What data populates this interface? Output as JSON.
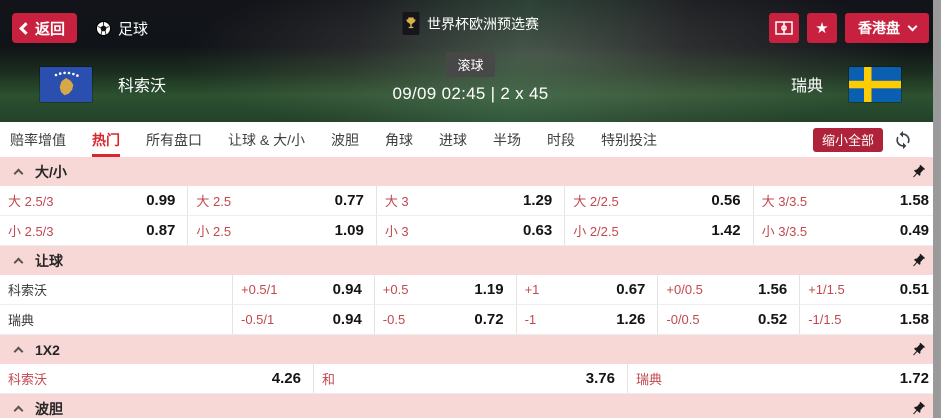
{
  "topbar": {
    "back_label": "返回",
    "sport_label": "足球",
    "league_label": "世界杯欧洲预选赛",
    "odds_type_label": "香港盘"
  },
  "match": {
    "home_team": "科索沃",
    "away_team": "瑞典",
    "status_badge": "滚球",
    "time_info": "09/09 02:45 | 2 x 45"
  },
  "tabs": {
    "items": [
      {
        "label": "赔率增值",
        "active": false
      },
      {
        "label": "热门",
        "active": true
      },
      {
        "label": "所有盘口",
        "active": false
      },
      {
        "label": "让球 & 大/小",
        "active": false
      },
      {
        "label": "波胆",
        "active": false
      },
      {
        "label": "角球",
        "active": false
      },
      {
        "label": "进球",
        "active": false
      },
      {
        "label": "半场",
        "active": false
      },
      {
        "label": "时段",
        "active": false
      },
      {
        "label": "特别投注",
        "active": false
      }
    ]
  },
  "toolbar": {
    "collapse_all_label": "缩小全部"
  },
  "markets": [
    {
      "title": "大/小",
      "rows": [
        {
          "cells": [
            {
              "label": "大 2.5/3",
              "odds": "0.99"
            },
            {
              "label": "大 2.5",
              "odds": "0.77"
            },
            {
              "label": "大 3",
              "odds": "1.29"
            },
            {
              "label": "大 2/2.5",
              "odds": "0.56"
            },
            {
              "label": "大 3/3.5",
              "odds": "1.58"
            }
          ]
        },
        {
          "cells": [
            {
              "label": "小 2.5/3",
              "odds": "0.87"
            },
            {
              "label": "小 2.5",
              "odds": "1.09"
            },
            {
              "label": "小 3",
              "odds": "0.63"
            },
            {
              "label": "小 2/2.5",
              "odds": "1.42"
            },
            {
              "label": "小 3/3.5",
              "odds": "0.49"
            }
          ]
        }
      ]
    },
    {
      "title": "让球",
      "rows": [
        {
          "team": "科索沃",
          "cells": [
            {
              "label": "+0.5/1",
              "odds": "0.94"
            },
            {
              "label": "+0.5",
              "odds": "1.19"
            },
            {
              "label": "+1",
              "odds": "0.67"
            },
            {
              "label": "+0/0.5",
              "odds": "1.56"
            },
            {
              "label": "+1/1.5",
              "odds": "0.51"
            }
          ]
        },
        {
          "team": "瑞典",
          "cells": [
            {
              "label": "-0.5/1",
              "odds": "0.94"
            },
            {
              "label": "-0.5",
              "odds": "0.72"
            },
            {
              "label": "-1",
              "odds": "1.26"
            },
            {
              "label": "-0/0.5",
              "odds": "0.52"
            },
            {
              "label": "-1/1.5",
              "odds": "1.58"
            }
          ]
        }
      ]
    },
    {
      "title": "1X2",
      "rows": [
        {
          "cells": [
            {
              "label": "科索沃",
              "odds": "4.26"
            },
            {
              "label": "和",
              "odds": "3.76"
            },
            {
              "label": "瑞典",
              "odds": "1.72"
            }
          ]
        }
      ]
    },
    {
      "title": "波胆",
      "rows": []
    }
  ],
  "icons": {
    "star": "★"
  },
  "colors": {
    "accent_red": "#c7213f",
    "tab_red": "#d7282f",
    "collapse_red": "#ae2339",
    "header_pink": "#f8d7d7",
    "odds_red": "#c2484f",
    "scrollbar_gray": "#9a9a9a"
  }
}
